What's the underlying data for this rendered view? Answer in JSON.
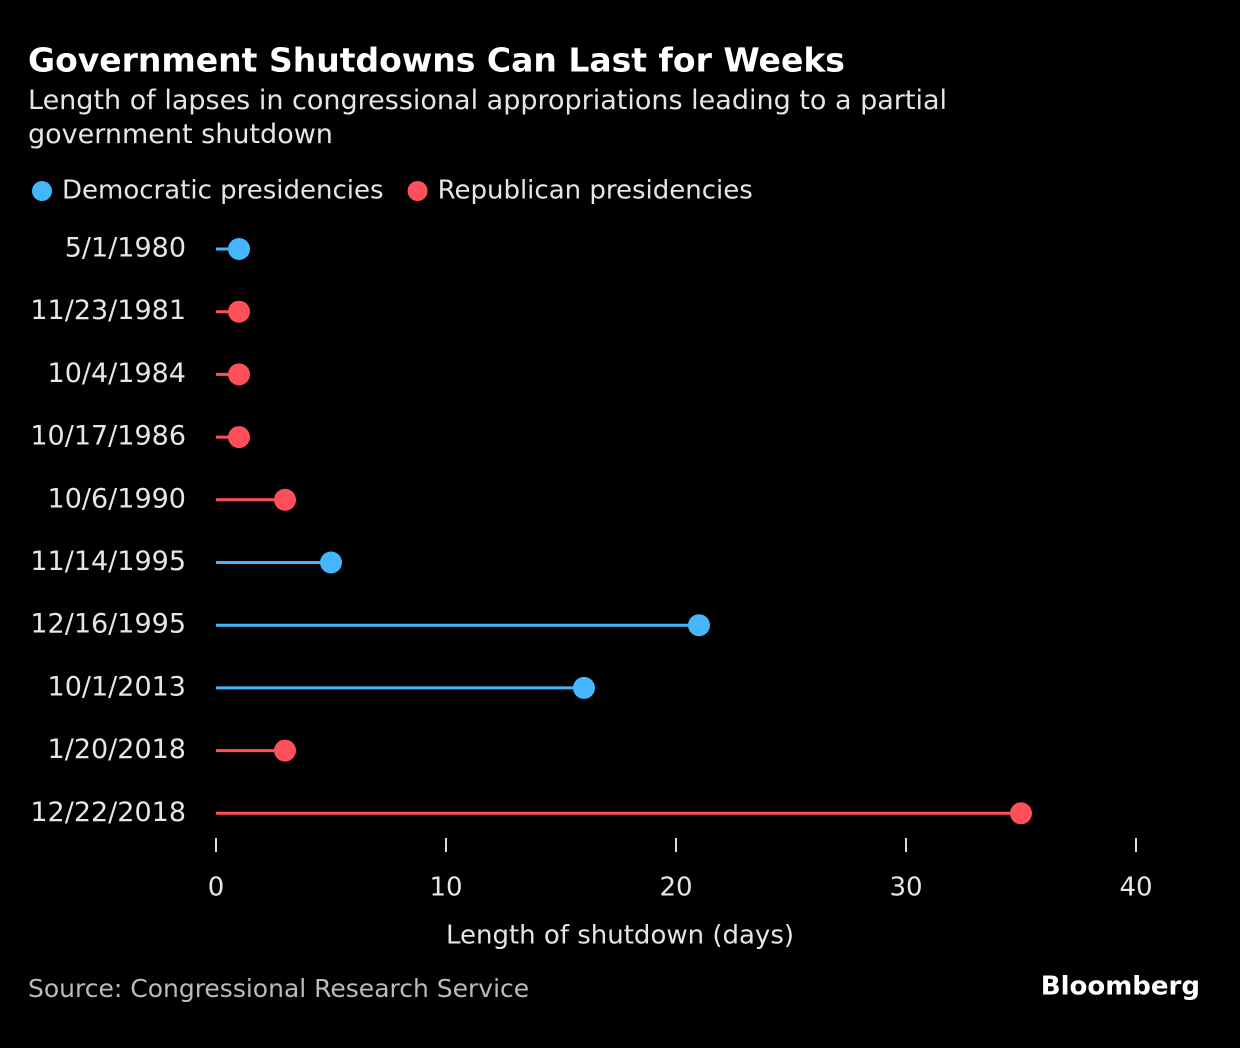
{
  "chart_data": {
    "type": "lollipop",
    "title": "Government Shutdowns Can Last for Weeks",
    "subtitle": "Length of lapses in congressional appropriations leading to a partial government shutdown",
    "categories": [
      "5/1/1980",
      "11/23/1981",
      "10/4/1984",
      "10/17/1986",
      "10/6/1990",
      "11/14/1995",
      "12/16/1995",
      "10/1/2013",
      "1/20/2018",
      "12/22/2018"
    ],
    "series": [
      {
        "name": "Democratic presidencies",
        "color": "#45b6fe",
        "values": [
          1,
          null,
          null,
          null,
          null,
          5,
          21,
          16,
          null,
          null
        ]
      },
      {
        "name": "Republican presidencies",
        "color": "#ff4f5b",
        "values": [
          null,
          1,
          1,
          1,
          3,
          null,
          null,
          null,
          3,
          35
        ]
      }
    ],
    "xlim": [
      0,
      40
    ],
    "xticks": [
      0,
      10,
      20,
      30,
      40
    ],
    "xlabel": "Length of shutdown (days)",
    "source": "Source: Congressional Research Service",
    "brand": "Bloomberg"
  }
}
